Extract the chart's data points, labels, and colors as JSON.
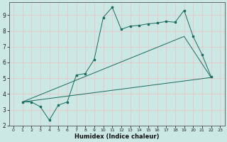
{
  "xlabel": "Humidex (Indice chaleur)",
  "bg_color": "#cce8e4",
  "grid_color": "#e8c8c8",
  "line_color": "#1a6b60",
  "xlim": [
    -0.5,
    23.5
  ],
  "ylim": [
    2,
    9.8
  ],
  "xticks": [
    0,
    1,
    2,
    3,
    4,
    5,
    6,
    7,
    8,
    9,
    10,
    11,
    12,
    13,
    14,
    15,
    16,
    17,
    18,
    19,
    20,
    21,
    22,
    23
  ],
  "yticks": [
    2,
    3,
    4,
    5,
    6,
    7,
    8,
    9
  ],
  "line1_x": [
    1,
    2,
    3,
    4,
    5,
    6,
    7,
    8,
    9,
    10,
    11,
    12,
    13,
    14,
    15,
    16,
    17,
    18,
    19,
    20,
    21,
    22
  ],
  "line1_y": [
    3.5,
    3.5,
    3.2,
    2.35,
    3.3,
    3.5,
    5.2,
    5.3,
    6.2,
    8.85,
    9.5,
    8.1,
    8.3,
    8.35,
    8.45,
    8.5,
    8.6,
    8.55,
    9.3,
    7.65,
    6.5,
    5.1
  ],
  "line2_x": [
    1,
    22
  ],
  "line2_y": [
    3.5,
    5.05
  ],
  "line3_x": [
    1,
    19,
    22
  ],
  "line3_y": [
    3.5,
    7.65,
    5.05
  ]
}
